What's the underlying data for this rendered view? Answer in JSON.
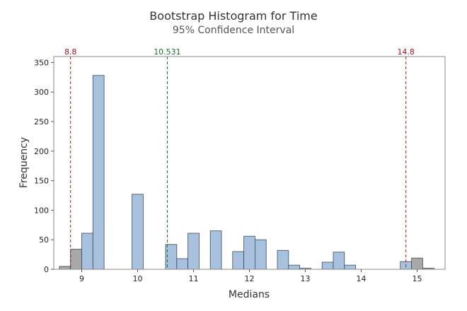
{
  "chart_data": {
    "type": "bar",
    "title": "Bootstrap Histogram for Time",
    "subtitle": "95% Confidence Interval",
    "xlabel": "Medians",
    "ylabel": "Frequency",
    "xlim": [
      8.5,
      15.5
    ],
    "ylim": [
      0,
      360
    ],
    "x_ticks": [
      9,
      10,
      11,
      12,
      13,
      14,
      15
    ],
    "y_ticks": [
      0,
      50,
      100,
      150,
      200,
      250,
      300,
      350
    ],
    "bin_width": 0.2,
    "bins": [
      {
        "x": 8.7,
        "value": 5,
        "inside_interval": false
      },
      {
        "x": 8.9,
        "value": 34,
        "inside_interval": false
      },
      {
        "x": 9.1,
        "value": 61,
        "inside_interval": true
      },
      {
        "x": 9.3,
        "value": 328,
        "inside_interval": true
      },
      {
        "x": 10.0,
        "value": 127,
        "inside_interval": true
      },
      {
        "x": 10.6,
        "value": 42,
        "inside_interval": true
      },
      {
        "x": 10.8,
        "value": 18,
        "inside_interval": true
      },
      {
        "x": 11.0,
        "value": 61,
        "inside_interval": true
      },
      {
        "x": 11.4,
        "value": 65,
        "inside_interval": true
      },
      {
        "x": 11.8,
        "value": 30,
        "inside_interval": true
      },
      {
        "x": 12.0,
        "value": 56,
        "inside_interval": true
      },
      {
        "x": 12.2,
        "value": 50,
        "inside_interval": true
      },
      {
        "x": 12.6,
        "value": 32,
        "inside_interval": true
      },
      {
        "x": 12.8,
        "value": 7,
        "inside_interval": true
      },
      {
        "x": 13.0,
        "value": 2,
        "inside_interval": true
      },
      {
        "x": 13.4,
        "value": 12,
        "inside_interval": true
      },
      {
        "x": 13.6,
        "value": 29,
        "inside_interval": true
      },
      {
        "x": 13.8,
        "value": 7,
        "inside_interval": true
      },
      {
        "x": 14.8,
        "value": 13,
        "inside_interval": true
      },
      {
        "x": 15.0,
        "value": 19,
        "inside_interval": false
      },
      {
        "x": 15.2,
        "value": 2,
        "inside_interval": false
      }
    ],
    "reference_lines": [
      {
        "value": 8.8,
        "label": "8.8",
        "color": "#a4131f"
      },
      {
        "value": 10.531,
        "label": "10.531",
        "color": "#1a6b2f"
      },
      {
        "value": 14.8,
        "label": "14.8",
        "color": "#a4131f"
      }
    ],
    "colors": {
      "inside_fill": "#a8c1de",
      "outside_fill": "#a8a8a8",
      "bar_stroke": "#3c4a5a"
    }
  }
}
